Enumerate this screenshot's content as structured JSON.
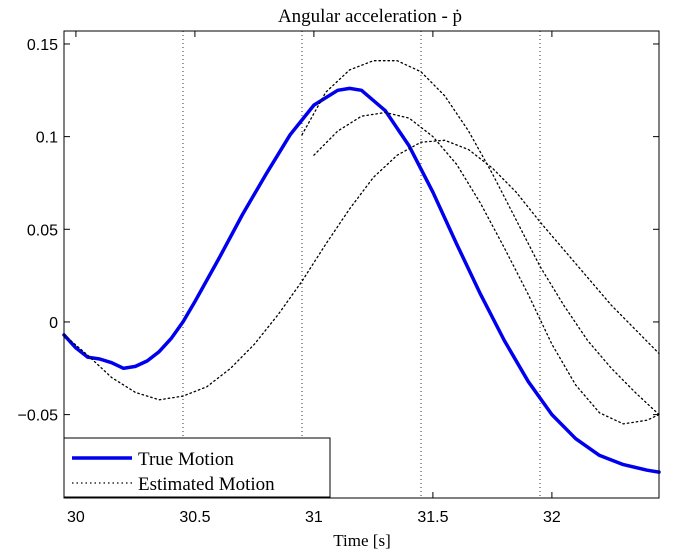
{
  "chart_data": {
    "type": "line",
    "title": "Angular acceleration - ṗ",
    "xlabel": "Time [s]",
    "ylabel": "",
    "xlim": [
      29.95,
      32.45
    ],
    "ylim": [
      -0.095,
      0.157
    ],
    "xticks": [
      30,
      30.5,
      31,
      31.5,
      32
    ],
    "xtick_labels": [
      "30",
      "30.5",
      "31",
      "31.5",
      "32"
    ],
    "yticks": [
      -0.05,
      0,
      0.05,
      0.1,
      0.15
    ],
    "ytick_labels": [
      "−0.05",
      "0",
      "0.05",
      "0.1",
      "0.15"
    ],
    "vertical_dotted_lines_x": [
      30.45,
      30.95,
      31.45,
      31.95,
      32.45
    ],
    "legend_position": "bottom-left",
    "series": [
      {
        "name": "True Motion",
        "color": "#0000ee",
        "style": "solid",
        "x": [
          29.95,
          30.0,
          30.05,
          30.1,
          30.15,
          30.2,
          30.25,
          30.3,
          30.35,
          30.4,
          30.45,
          30.5,
          30.6,
          30.7,
          30.8,
          30.9,
          31.0,
          31.1,
          31.15,
          31.2,
          31.3,
          31.4,
          31.5,
          31.6,
          31.7,
          31.8,
          31.9,
          32.0,
          32.1,
          32.2,
          32.3,
          32.4,
          32.45
        ],
        "y": [
          -0.007,
          -0.014,
          -0.019,
          -0.02,
          -0.022,
          -0.025,
          -0.024,
          -0.021,
          -0.016,
          -0.009,
          0.0,
          0.011,
          0.034,
          0.058,
          0.08,
          0.101,
          0.117,
          0.125,
          0.126,
          0.125,
          0.114,
          0.095,
          0.07,
          0.042,
          0.015,
          -0.01,
          -0.032,
          -0.05,
          -0.063,
          -0.072,
          -0.077,
          -0.08,
          -0.081
        ]
      },
      {
        "name": "Estimated Motion",
        "color": "#000000",
        "style": "dotted",
        "x": [
          29.95,
          30.05,
          30.15,
          30.25,
          30.35,
          30.45,
          30.55,
          30.65,
          30.75,
          30.85,
          30.95,
          31.05,
          31.15,
          31.25,
          31.35,
          31.45,
          31.55,
          31.65,
          31.75,
          31.85,
          31.95,
          32.05,
          32.15,
          32.25,
          32.35,
          32.45
        ],
        "y": [
          -0.007,
          -0.018,
          -0.03,
          -0.038,
          -0.042,
          -0.04,
          -0.035,
          -0.025,
          -0.012,
          0.004,
          0.022,
          0.042,
          0.061,
          0.078,
          0.09,
          0.097,
          0.098,
          0.093,
          0.083,
          0.07,
          0.054,
          0.039,
          0.024,
          0.009,
          -0.004,
          -0.017
        ]
      },
      {
        "name": "",
        "color": "#000000",
        "style": "dotted",
        "x": [
          30.95,
          31.05,
          31.15,
          31.25,
          31.35,
          31.45,
          31.55,
          31.65,
          31.75,
          31.85,
          31.95,
          32.05,
          32.15,
          32.25,
          32.35,
          32.45
        ],
        "y": [
          0.101,
          0.124,
          0.136,
          0.141,
          0.141,
          0.135,
          0.122,
          0.103,
          0.08,
          0.055,
          0.03,
          0.009,
          -0.01,
          -0.025,
          -0.038,
          -0.05
        ]
      },
      {
        "name": "",
        "color": "#000000",
        "style": "dotted",
        "x": [
          31.0,
          31.1,
          31.2,
          31.3,
          31.4,
          31.5,
          31.6,
          31.7,
          31.8,
          31.9,
          32.0,
          32.1,
          32.2,
          32.3,
          32.4,
          32.45
        ],
        "y": [
          0.09,
          0.103,
          0.111,
          0.113,
          0.11,
          0.1,
          0.085,
          0.064,
          0.04,
          0.015,
          -0.012,
          -0.034,
          -0.049,
          -0.055,
          -0.053,
          -0.05
        ]
      }
    ]
  },
  "legend": {
    "true_label": "True Motion",
    "estimated_label": "Estimated Motion"
  }
}
